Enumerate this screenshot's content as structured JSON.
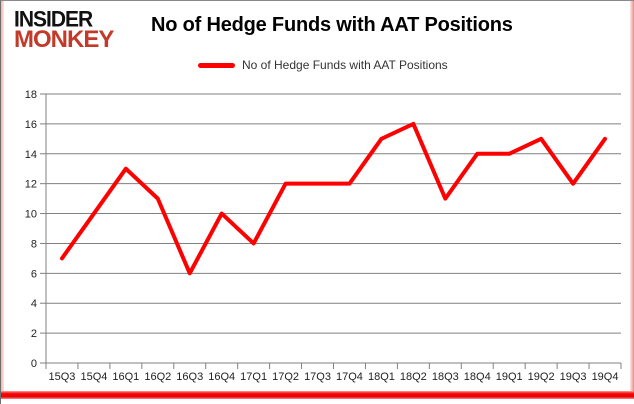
{
  "brand": {
    "line1": "INSIDER",
    "line2": "MONKEY",
    "color": "#c23b2a"
  },
  "header": {
    "title": "No of Hedge Funds with AAT Positions"
  },
  "legend": {
    "label": "No of Hedge Funds with AAT Positions",
    "swatch_color": "#fe0000"
  },
  "chart_data": {
    "type": "line",
    "title": "No of Hedge Funds with AAT Positions",
    "categories": [
      "15Q3",
      "15Q4",
      "16Q1",
      "16Q2",
      "16Q3",
      "16Q4",
      "17Q1",
      "17Q2",
      "17Q3",
      "17Q4",
      "18Q1",
      "18Q2",
      "18Q3",
      "18Q4",
      "19Q1",
      "19Q2",
      "19Q3",
      "19Q4"
    ],
    "series": [
      {
        "name": "No of Hedge Funds with AAT Positions",
        "values": [
          7,
          10,
          13,
          11,
          6,
          10,
          8,
          12,
          12,
          12,
          15,
          16,
          11,
          14,
          14,
          15,
          12,
          15
        ]
      }
    ],
    "xlabel": "",
    "ylabel": "",
    "ylim": [
      0,
      18
    ],
    "ytick_step": 2,
    "grid": true,
    "legend_position": "top-center",
    "line_color": "#fe0000",
    "gridline_color": "#808080",
    "axis_color": "#808080"
  }
}
